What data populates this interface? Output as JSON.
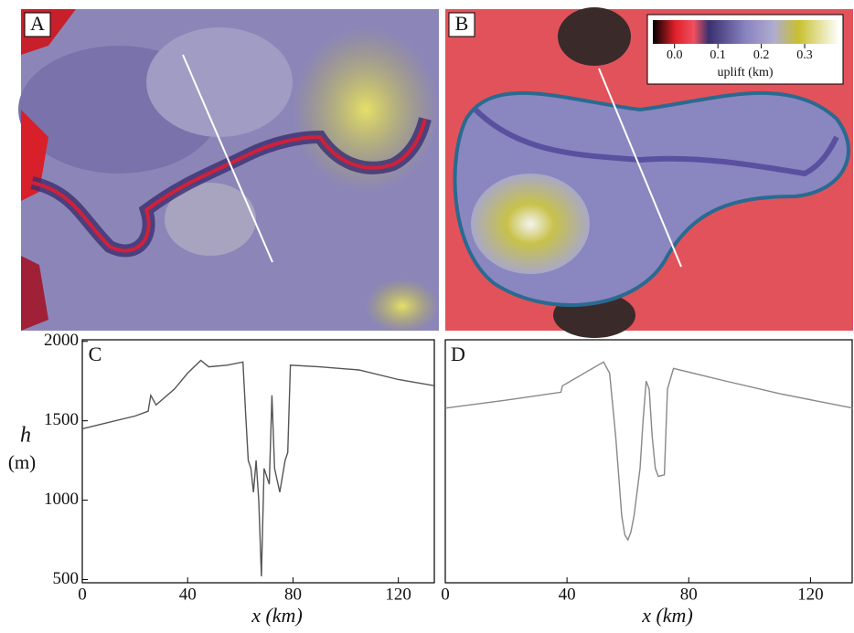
{
  "maps": [
    {
      "panel": "A"
    },
    {
      "panel": "B",
      "colorbar": {
        "label": "uplift (km)",
        "ticks": [
          {
            "value": 0,
            "label": "0.0"
          },
          0.1,
          0.2,
          0.3
        ],
        "lim": [
          -0.05,
          0.38
        ]
      }
    }
  ],
  "chart_data": [
    {
      "type": "line",
      "panel": "C",
      "ylabel_symbol": "h",
      "ylabel_unit": "(m)",
      "xlabel": "x (km)",
      "xlim": [
        0,
        134
      ],
      "ylim": [
        480,
        2010
      ],
      "xticks": [
        0,
        40,
        80,
        120
      ],
      "yticks": [
        500,
        1000,
        1500,
        2000
      ],
      "color": "#555555",
      "x": [
        0,
        10,
        20,
        25,
        26,
        28,
        35,
        40,
        45,
        48,
        55,
        61,
        62,
        63,
        64,
        65,
        66,
        67,
        68,
        69,
        71,
        72,
        73,
        75,
        77,
        78,
        79,
        90,
        105,
        120,
        134
      ],
      "values": [
        1450,
        1490,
        1530,
        1560,
        1660,
        1600,
        1700,
        1800,
        1880,
        1840,
        1850,
        1870,
        1550,
        1250,
        1200,
        1050,
        1250,
        1000,
        520,
        1200,
        1100,
        1660,
        1200,
        1050,
        1250,
        1300,
        1850,
        1840,
        1820,
        1760,
        1720
      ]
    },
    {
      "type": "line",
      "panel": "D",
      "xlabel": "x (km)",
      "xlim": [
        0,
        134
      ],
      "ylim": [
        480,
        2010
      ],
      "xticks": [
        0,
        40,
        80,
        120
      ],
      "color": "#888888",
      "x": [
        0,
        20,
        38,
        38.5,
        52,
        54,
        56,
        58,
        59,
        60,
        61,
        62,
        64,
        65,
        66,
        67,
        68,
        69,
        70,
        72,
        73,
        75,
        90,
        110,
        134
      ],
      "values": [
        1580,
        1630,
        1680,
        1720,
        1870,
        1800,
        1400,
        900,
        780,
        750,
        800,
        900,
        1200,
        1500,
        1750,
        1700,
        1400,
        1200,
        1150,
        1160,
        1700,
        1830,
        1760,
        1670,
        1580
      ]
    }
  ]
}
